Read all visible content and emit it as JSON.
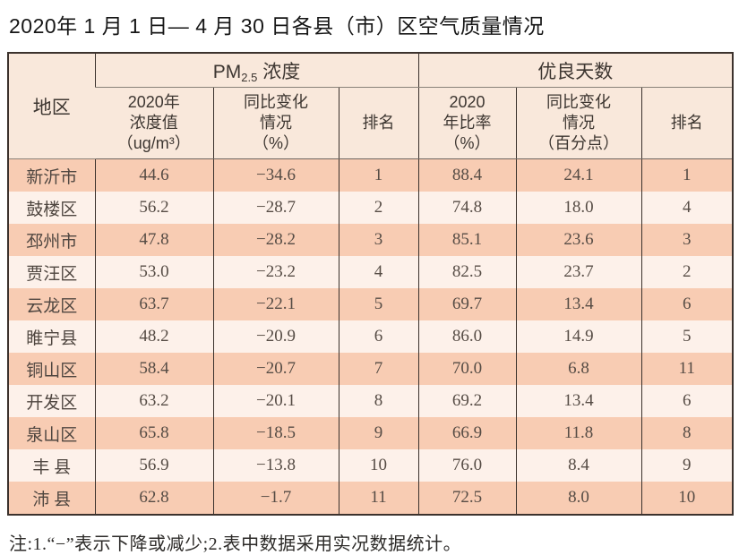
{
  "title": "2020年 1 月 1 日— 4 月 30 日各县（市）区空气质量情况",
  "table": {
    "corner_header": "地区",
    "pm_group": {
      "prefix": "PM",
      "sub": "2.5",
      "suffix": " 浓度"
    },
    "good_group": "优良天数",
    "subheaders": [
      "2020年\n浓度值\n（ug/m³）",
      "同比变化\n情况\n（%）",
      "排名",
      "2020\n年比率\n（%）",
      "同比变化\n情况\n（百分点）",
      "排名"
    ],
    "rows": [
      {
        "region": "新沂市",
        "pm_value": "44.6",
        "pm_change": "−34.6",
        "pm_rank": "1",
        "good_ratio": "88.4",
        "good_change": "24.1",
        "good_rank": "1"
      },
      {
        "region": "鼓楼区",
        "pm_value": "56.2",
        "pm_change": "−28.7",
        "pm_rank": "2",
        "good_ratio": "74.8",
        "good_change": "18.0",
        "good_rank": "4"
      },
      {
        "region": "邳州市",
        "pm_value": "47.8",
        "pm_change": "−28.2",
        "pm_rank": "3",
        "good_ratio": "85.1",
        "good_change": "23.6",
        "good_rank": "3"
      },
      {
        "region": "贾汪区",
        "pm_value": "53.0",
        "pm_change": "−23.2",
        "pm_rank": "4",
        "good_ratio": "82.5",
        "good_change": "23.7",
        "good_rank": "2"
      },
      {
        "region": "云龙区",
        "pm_value": "63.7",
        "pm_change": "−22.1",
        "pm_rank": "5",
        "good_ratio": "69.7",
        "good_change": "13.4",
        "good_rank": "6"
      },
      {
        "region": "睢宁县",
        "pm_value": "48.2",
        "pm_change": "−20.9",
        "pm_rank": "6",
        "good_ratio": "86.0",
        "good_change": "14.9",
        "good_rank": "5"
      },
      {
        "region": "铜山区",
        "pm_value": "58.4",
        "pm_change": "−20.7",
        "pm_rank": "7",
        "good_ratio": "70.0",
        "good_change": "6.8",
        "good_rank": "11"
      },
      {
        "region": "开发区",
        "pm_value": "63.2",
        "pm_change": "−20.1",
        "pm_rank": "8",
        "good_ratio": "69.2",
        "good_change": "13.4",
        "good_rank": "6"
      },
      {
        "region": "泉山区",
        "pm_value": "65.8",
        "pm_change": "−18.5",
        "pm_rank": "9",
        "good_ratio": "66.9",
        "good_change": "11.8",
        "good_rank": "8"
      },
      {
        "region": "丰 县",
        "pm_value": "56.9",
        "pm_change": "−13.8",
        "pm_rank": "10",
        "good_ratio": "76.0",
        "good_change": "8.4",
        "good_rank": "9"
      },
      {
        "region": "沛 县",
        "pm_value": "62.8",
        "pm_change": "−1.7",
        "pm_rank": "11",
        "good_ratio": "72.5",
        "good_change": "8.0",
        "good_rank": "10"
      }
    ]
  },
  "note": "注:1.“−”表示下降或减少;2.表中数据采用实况数据统计。",
  "colors": {
    "row_stripe": "#f8ccb3",
    "row_light": "#fdf1ea",
    "header_bg": "#f9e8db",
    "border_dark": "#3c322d",
    "border_gray": "#6e655e",
    "text_data": "#564c45",
    "text_title": "#161616"
  }
}
